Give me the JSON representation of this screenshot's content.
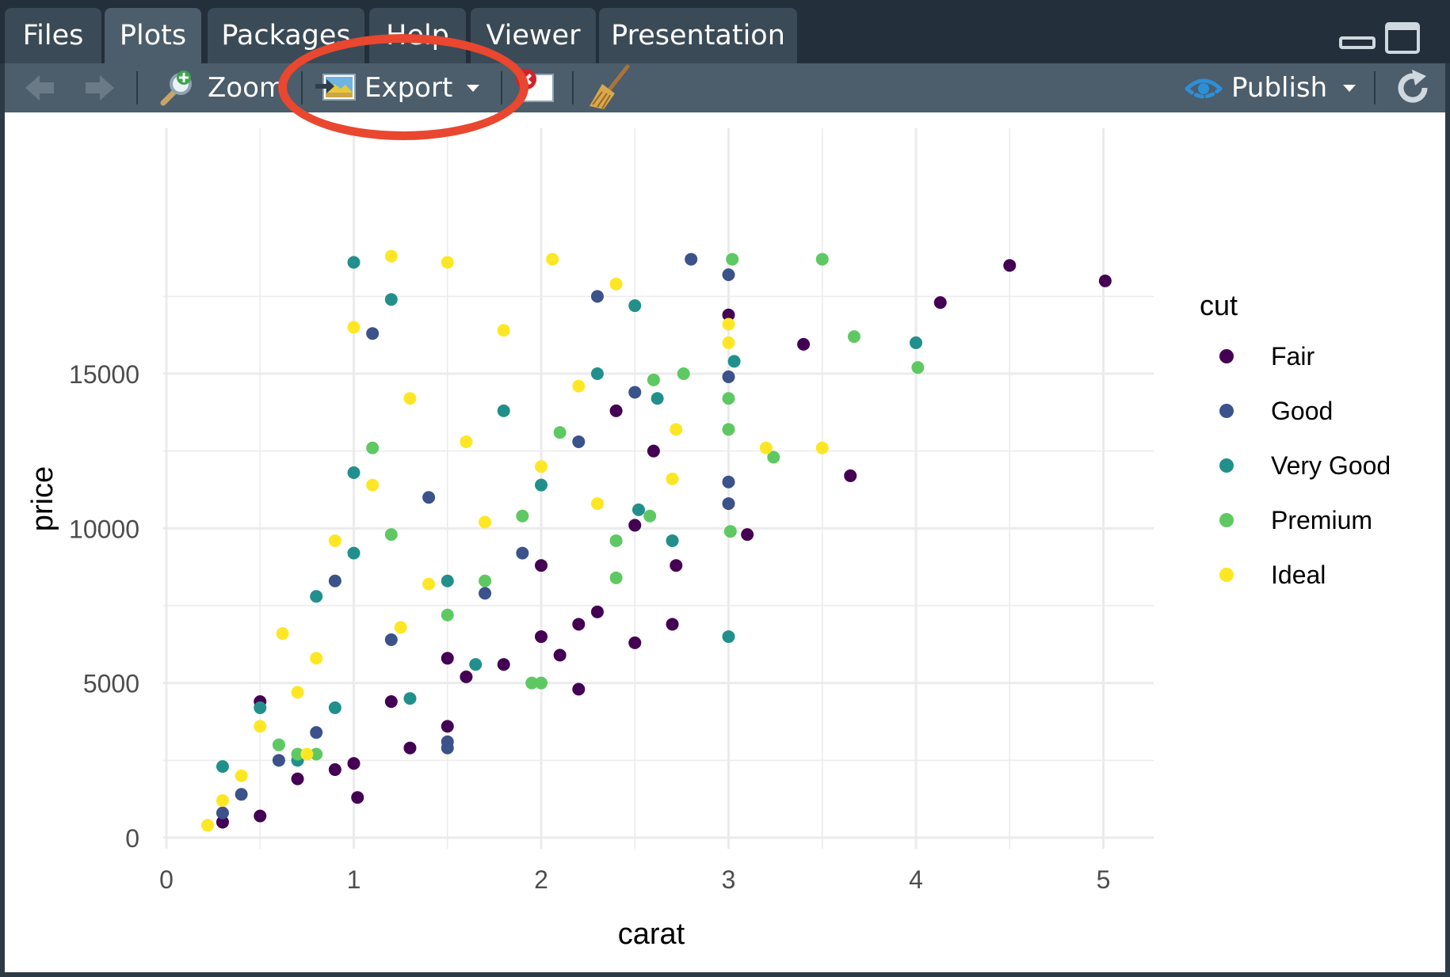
{
  "tabs": [
    {
      "label": "Files",
      "active": false
    },
    {
      "label": "Plots",
      "active": true
    },
    {
      "label": "Packages",
      "active": false
    },
    {
      "label": "Help",
      "active": false
    },
    {
      "label": "Viewer",
      "active": false
    },
    {
      "label": "Presentation",
      "active": false
    }
  ],
  "toolbar": {
    "zoom_label": "Zoom",
    "export_label": "Export",
    "publish_label": "Publish",
    "icons": [
      "back-arrow-icon",
      "forward-arrow-icon",
      "zoom-magnifier-icon",
      "export-image-icon",
      "remove-plot-icon",
      "broom-clear-icon",
      "publish-icon",
      "refresh-icon"
    ]
  },
  "highlight_color": "#e9472f",
  "chart_data": {
    "type": "scatter",
    "title": "",
    "xlabel": "carat",
    "ylabel": "price",
    "xlim": [
      0,
      5.2
    ],
    "ylim": [
      0,
      19000
    ],
    "x_ticks": [
      "0",
      "1",
      "2",
      "3",
      "4",
      "5"
    ],
    "y_ticks": [
      "0",
      "5000",
      "10000",
      "15000"
    ],
    "grid": true,
    "legend": {
      "title": "cut",
      "placement": "right"
    },
    "series": [
      {
        "name": "Fair",
        "color": "#440154",
        "points": [
          [
            4.5,
            18500
          ],
          [
            5.01,
            18000
          ],
          [
            4.13,
            17300
          ],
          [
            3.4,
            15950
          ],
          [
            3.65,
            11700
          ],
          [
            3.1,
            9800
          ],
          [
            3.0,
            16900
          ],
          [
            2.72,
            8800
          ],
          [
            2.5,
            10100
          ],
          [
            2.7,
            6900
          ],
          [
            2.5,
            6300
          ],
          [
            2.3,
            7300
          ],
          [
            2.2,
            6900
          ],
          [
            2.1,
            5900
          ],
          [
            2.2,
            4800
          ],
          [
            1.5,
            3600
          ],
          [
            1.3,
            2900
          ],
          [
            1.0,
            2400
          ],
          [
            1.02,
            1300
          ],
          [
            0.5,
            4400
          ],
          [
            0.7,
            1900
          ],
          [
            0.9,
            2200
          ],
          [
            1.2,
            4400
          ],
          [
            1.6,
            5200
          ],
          [
            1.8,
            5600
          ],
          [
            2.0,
            6500
          ],
          [
            2.6,
            12500
          ],
          [
            2.4,
            13800
          ],
          [
            2.0,
            8800
          ],
          [
            1.5,
            5800
          ],
          [
            0.5,
            700
          ],
          [
            0.3,
            500
          ]
        ]
      },
      {
        "name": "Good",
        "color": "#3b528b",
        "points": [
          [
            2.8,
            18700
          ],
          [
            3.0,
            18200
          ],
          [
            3.0,
            14900
          ],
          [
            3.0,
            11500
          ],
          [
            3.0,
            10800
          ],
          [
            1.1,
            16300
          ],
          [
            0.9,
            8300
          ],
          [
            2.3,
            17500
          ],
          [
            1.5,
            3100
          ],
          [
            1.5,
            2900
          ],
          [
            0.8,
            3400
          ],
          [
            0.6,
            2500
          ],
          [
            0.4,
            1400
          ],
          [
            0.3,
            800
          ],
          [
            1.2,
            6400
          ],
          [
            1.7,
            7900
          ],
          [
            2.5,
            14400
          ],
          [
            2.2,
            12800
          ],
          [
            1.9,
            9200
          ],
          [
            1.4,
            11000
          ]
        ]
      },
      {
        "name": "Very Good",
        "color": "#21908c",
        "points": [
          [
            1.0,
            18600
          ],
          [
            4.0,
            16000
          ],
          [
            3.03,
            15400
          ],
          [
            3.0,
            6500
          ],
          [
            2.62,
            14200
          ],
          [
            2.52,
            10600
          ],
          [
            2.7,
            9600
          ],
          [
            1.65,
            5600
          ],
          [
            1.0,
            11800
          ],
          [
            1.0,
            9200
          ],
          [
            0.8,
            7800
          ],
          [
            0.5,
            4200
          ],
          [
            0.7,
            2500
          ],
          [
            0.3,
            2300
          ],
          [
            1.5,
            8300
          ],
          [
            2.0,
            11400
          ],
          [
            1.8,
            13800
          ],
          [
            1.2,
            17400
          ],
          [
            2.5,
            17200
          ],
          [
            0.9,
            4200
          ],
          [
            1.3,
            4500
          ],
          [
            2.3,
            15000
          ]
        ]
      },
      {
        "name": "Premium",
        "color": "#5ec962",
        "points": [
          [
            3.5,
            18700
          ],
          [
            3.67,
            16200
          ],
          [
            4.01,
            15200
          ],
          [
            3.0,
            14200
          ],
          [
            3.0,
            13200
          ],
          [
            3.02,
            18700
          ],
          [
            3.24,
            12300
          ],
          [
            2.76,
            15000
          ],
          [
            2.58,
            10400
          ],
          [
            2.0,
            5000
          ],
          [
            1.95,
            5000
          ],
          [
            2.4,
            9600
          ],
          [
            2.4,
            8400
          ],
          [
            3.01,
            9900
          ],
          [
            1.2,
            9800
          ],
          [
            0.7,
            2700
          ],
          [
            0.8,
            2700
          ],
          [
            1.5,
            7200
          ],
          [
            1.7,
            8300
          ],
          [
            2.1,
            13100
          ],
          [
            2.6,
            14800
          ],
          [
            1.9,
            10400
          ],
          [
            0.6,
            3000
          ],
          [
            1.1,
            12600
          ]
        ]
      },
      {
        "name": "Ideal",
        "color": "#fde725",
        "points": [
          [
            1.2,
            18800
          ],
          [
            1.5,
            18600
          ],
          [
            2.06,
            18700
          ],
          [
            3.0,
            16600
          ],
          [
            3.0,
            16000
          ],
          [
            3.5,
            12600
          ],
          [
            3.2,
            12600
          ],
          [
            2.72,
            13200
          ],
          [
            2.7,
            11600
          ],
          [
            0.62,
            6600
          ],
          [
            0.9,
            9600
          ],
          [
            1.0,
            16500
          ],
          [
            1.3,
            14200
          ],
          [
            1.1,
            11400
          ],
          [
            0.8,
            5800
          ],
          [
            0.5,
            3600
          ],
          [
            0.75,
            2700
          ],
          [
            0.4,
            2000
          ],
          [
            0.3,
            1200
          ],
          [
            0.22,
            400
          ],
          [
            1.6,
            12800
          ],
          [
            1.8,
            16400
          ],
          [
            2.4,
            17900
          ],
          [
            2.2,
            14600
          ],
          [
            1.4,
            8200
          ],
          [
            1.7,
            10200
          ],
          [
            2.3,
            10800
          ],
          [
            0.7,
            4700
          ],
          [
            1.25,
            6800
          ],
          [
            2.0,
            12000
          ]
        ]
      }
    ]
  }
}
